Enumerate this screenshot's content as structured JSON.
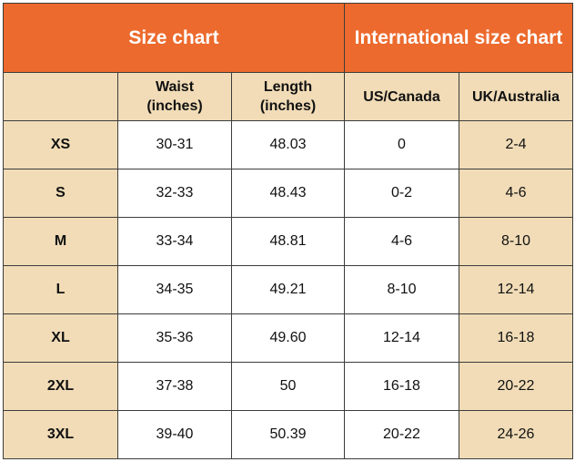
{
  "header": {
    "groups": [
      "Size chart",
      "International size chart"
    ],
    "columns": [
      "Waist\n(inches)",
      "Length\n(inches)",
      "US/Canada",
      "UK/Australia"
    ]
  },
  "table": {
    "rows": [
      [
        "XS",
        "30-31",
        "48.03",
        "0",
        "2-4"
      ],
      [
        "S",
        "32-33",
        "48.43",
        "0-2",
        "4-6"
      ],
      [
        "M",
        "33-34",
        "48.81",
        "4-6",
        "8-10"
      ],
      [
        "L",
        "34-35",
        "49.21",
        "8-10",
        "12-14"
      ],
      [
        "XL",
        "35-36",
        "49.60",
        "12-14",
        "16-18"
      ],
      [
        "2XL",
        "37-38",
        "50",
        "16-18",
        "20-22"
      ],
      [
        "3XL",
        "39-40",
        "50.39",
        "20-22",
        "24-26"
      ]
    ]
  }
}
